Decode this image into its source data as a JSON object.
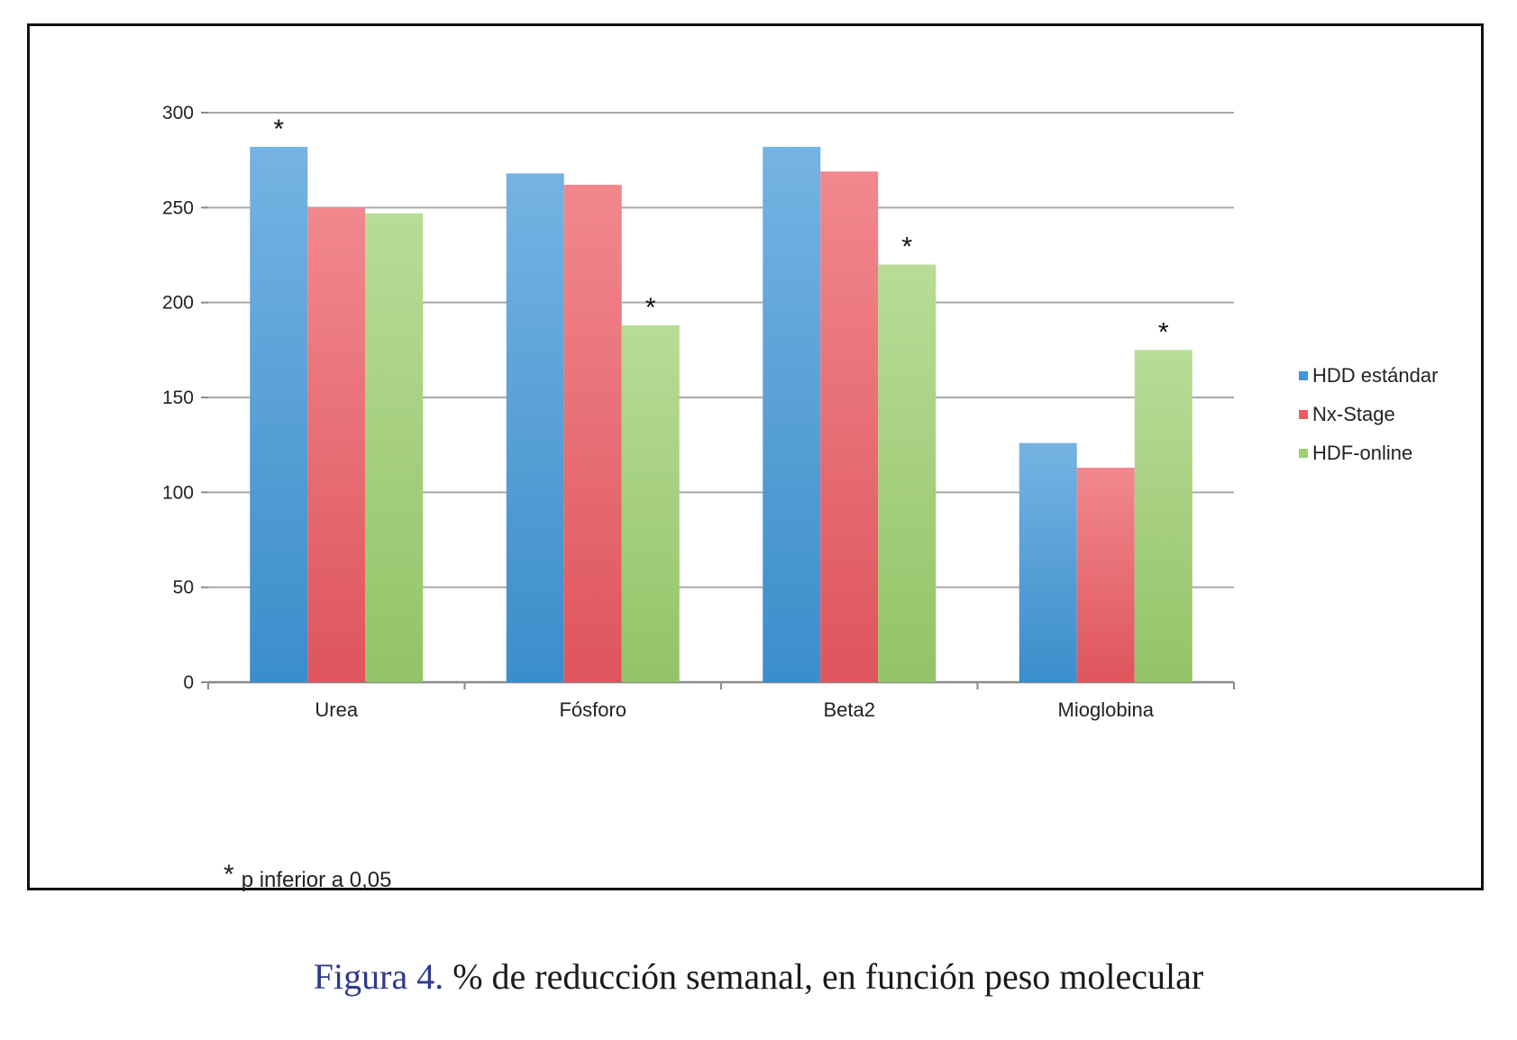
{
  "chart_data": {
    "type": "bar",
    "categories": [
      "Urea",
      "Fósforo",
      "Beta2",
      "Mioglobina"
    ],
    "series": [
      {
        "name": "HDD estándar",
        "color": "#3f96d8",
        "values": [
          282,
          268,
          282,
          126
        ]
      },
      {
        "name": "Nx-Stage",
        "color": "#ec5a62",
        "values": [
          250,
          262,
          269,
          113
        ]
      },
      {
        "name": "HDF-online",
        "color": "#9ccf6e",
        "values": [
          247,
          188,
          220,
          175
        ]
      }
    ],
    "significant": [
      {
        "category": "Urea",
        "series": "HDD estándar"
      },
      {
        "category": "Fósforo",
        "series": "HDF-online"
      },
      {
        "category": "Beta2",
        "series": "HDF-online"
      },
      {
        "category": "Mioglobina",
        "series": "HDF-online"
      }
    ],
    "significance_marker": "*",
    "ylim": [
      0,
      300
    ],
    "yticks": [
      "0",
      "50",
      "100",
      "150",
      "200",
      "250",
      "300"
    ],
    "grid": true,
    "legend_position": "right"
  },
  "footnote": {
    "symbol": "*",
    "text": "p inferior a 0,05"
  },
  "caption": {
    "label": "Figura 4.",
    "text": "% de reducción semanal, en función peso molecular"
  }
}
